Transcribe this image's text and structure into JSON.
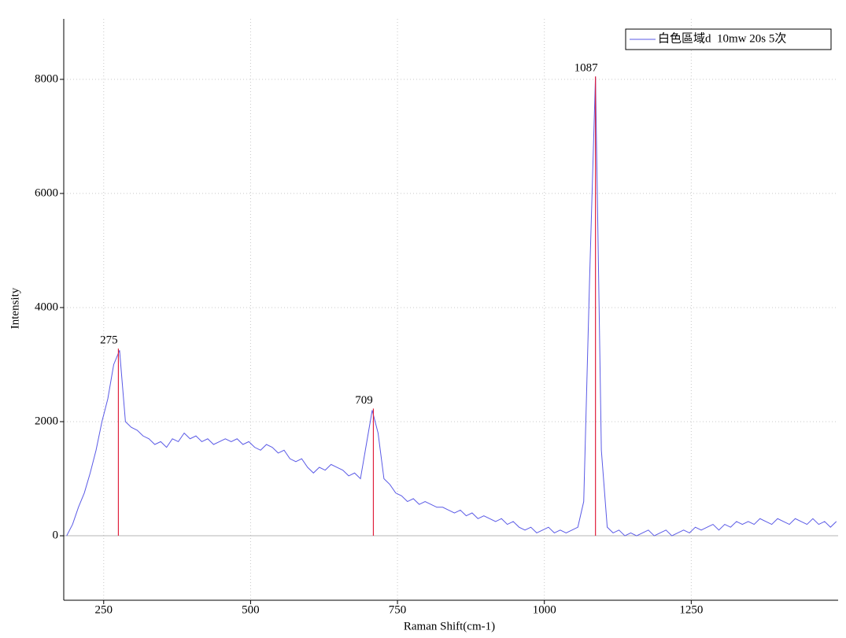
{
  "chart_data": {
    "type": "line",
    "xlabel": "Raman Shift(cm-1)",
    "ylabel": "Intensity",
    "x": [
      187,
      197,
      207,
      217,
      227,
      237,
      247,
      257,
      267,
      277,
      287,
      297,
      307,
      317,
      327,
      337,
      347,
      357,
      367,
      377,
      387,
      397,
      407,
      417,
      427,
      437,
      447,
      457,
      467,
      477,
      487,
      497,
      507,
      517,
      527,
      537,
      547,
      557,
      567,
      577,
      587,
      597,
      607,
      617,
      627,
      637,
      647,
      657,
      667,
      677,
      687,
      697,
      707,
      717,
      727,
      737,
      747,
      757,
      767,
      777,
      787,
      797,
      807,
      817,
      827,
      837,
      847,
      857,
      867,
      877,
      887,
      897,
      907,
      917,
      927,
      937,
      947,
      957,
      967,
      977,
      987,
      997,
      1007,
      1017,
      1027,
      1037,
      1047,
      1057,
      1067,
      1077,
      1087,
      1097,
      1107,
      1117,
      1127,
      1137,
      1147,
      1157,
      1167,
      1177,
      1187,
      1197,
      1207,
      1217,
      1227,
      1237,
      1247,
      1257,
      1267,
      1277,
      1287,
      1297,
      1307,
      1317,
      1327,
      1337,
      1347,
      1357,
      1367,
      1377,
      1387,
      1397,
      1407,
      1417,
      1427,
      1437,
      1447,
      1457,
      1467,
      1477,
      1487,
      1497
    ],
    "series": [
      {
        "name": "白色區域d  10mw 20s 5次",
        "color": "#5a5ae6",
        "values": [
          0,
          200,
          500,
          750,
          1100,
          1500,
          2000,
          2400,
          3000,
          3250,
          2000,
          1900,
          1850,
          1750,
          1700,
          1600,
          1650,
          1550,
          1700,
          1650,
          1800,
          1700,
          1750,
          1650,
          1700,
          1600,
          1650,
          1700,
          1650,
          1700,
          1600,
          1650,
          1550,
          1500,
          1600,
          1550,
          1450,
          1500,
          1350,
          1300,
          1350,
          1200,
          1100,
          1200,
          1150,
          1250,
          1200,
          1150,
          1050,
          1100,
          1000,
          1600,
          2200,
          1800,
          1000,
          900,
          750,
          700,
          600,
          650,
          550,
          600,
          550,
          500,
          500,
          450,
          400,
          450,
          350,
          400,
          300,
          350,
          300,
          250,
          300,
          200,
          250,
          150,
          100,
          150,
          50,
          100,
          150,
          50,
          100,
          50,
          100,
          150,
          600,
          4500,
          8050,
          1500,
          150,
          50,
          100,
          0,
          50,
          0,
          50,
          100,
          0,
          50,
          100,
          0,
          50,
          100,
          50,
          150,
          100,
          150,
          200,
          100,
          200,
          150,
          250,
          200,
          250,
          200,
          300,
          250,
          200,
          300,
          250,
          200,
          300,
          250,
          200,
          300,
          200,
          250,
          150,
          250
        ]
      }
    ],
    "peaks": {
      "color": "#e0203c",
      "x": [
        275,
        709,
        1087
      ],
      "values": [
        3280,
        2230,
        8050
      ]
    },
    "xlim": [
      182,
      1500
    ],
    "ylim": [
      -1130,
      9060
    ],
    "xticks": [
      250,
      500,
      750,
      1000,
      1250
    ],
    "yticks": [
      0,
      2000,
      4000,
      6000,
      8000
    ],
    "grid": true,
    "legend": "upper right"
  }
}
